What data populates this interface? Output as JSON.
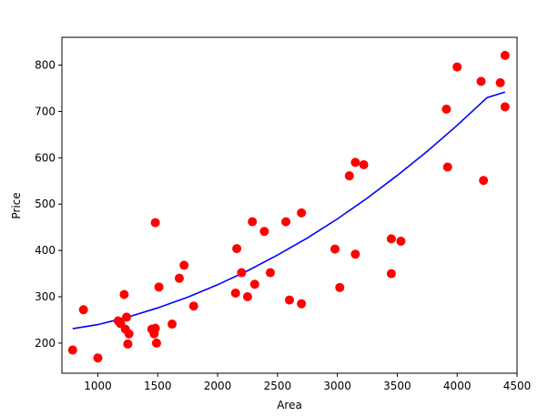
{
  "chart_data": {
    "type": "scatter",
    "xlabel": "Area",
    "ylabel": "Price",
    "xlim": [
      700,
      4500
    ],
    "ylim": [
      135,
      860
    ],
    "x_ticks": [
      1000,
      1500,
      2000,
      2500,
      3000,
      3500,
      4000,
      4500
    ],
    "y_ticks": [
      200,
      300,
      400,
      500,
      600,
      700,
      800
    ],
    "grid": false,
    "points_color": "#ff0000",
    "curve_color": "#0000ff",
    "points": [
      [
        790,
        185
      ],
      [
        880,
        272
      ],
      [
        1000,
        168
      ],
      [
        1170,
        248
      ],
      [
        1190,
        242
      ],
      [
        1220,
        305
      ],
      [
        1230,
        230
      ],
      [
        1240,
        256
      ],
      [
        1250,
        198
      ],
      [
        1260,
        220
      ],
      [
        1450,
        230
      ],
      [
        1470,
        220
      ],
      [
        1480,
        232
      ],
      [
        1480,
        460
      ],
      [
        1490,
        200
      ],
      [
        1510,
        321
      ],
      [
        1620,
        241
      ],
      [
        1680,
        340
      ],
      [
        1720,
        368
      ],
      [
        1800,
        280
      ],
      [
        2150,
        308
      ],
      [
        2160,
        404
      ],
      [
        2200,
        352
      ],
      [
        2250,
        300
      ],
      [
        2290,
        462
      ],
      [
        2310,
        327
      ],
      [
        2390,
        441
      ],
      [
        2440,
        352
      ],
      [
        2570,
        462
      ],
      [
        2600,
        293
      ],
      [
        2700,
        285
      ],
      [
        2700,
        481
      ],
      [
        2980,
        403
      ],
      [
        3020,
        320
      ],
      [
        3100,
        561
      ],
      [
        3150,
        590
      ],
      [
        3150,
        392
      ],
      [
        3220,
        585
      ],
      [
        3450,
        425
      ],
      [
        3450,
        350
      ],
      [
        3530,
        420
      ],
      [
        3910,
        705
      ],
      [
        3920,
        580
      ],
      [
        4000,
        796
      ],
      [
        4200,
        765
      ],
      [
        4220,
        551
      ],
      [
        4360,
        762
      ],
      [
        4400,
        821
      ],
      [
        4400,
        710
      ]
    ],
    "curve": {
      "x": [
        790,
        1000,
        1250,
        1500,
        1750,
        2000,
        2250,
        2500,
        2750,
        3000,
        3250,
        3500,
        3750,
        4000,
        4250,
        4400
      ],
      "y": [
        231,
        240,
        256,
        276,
        299,
        326,
        356,
        390,
        427,
        468,
        513,
        562,
        614,
        670,
        730,
        742
      ]
    }
  }
}
